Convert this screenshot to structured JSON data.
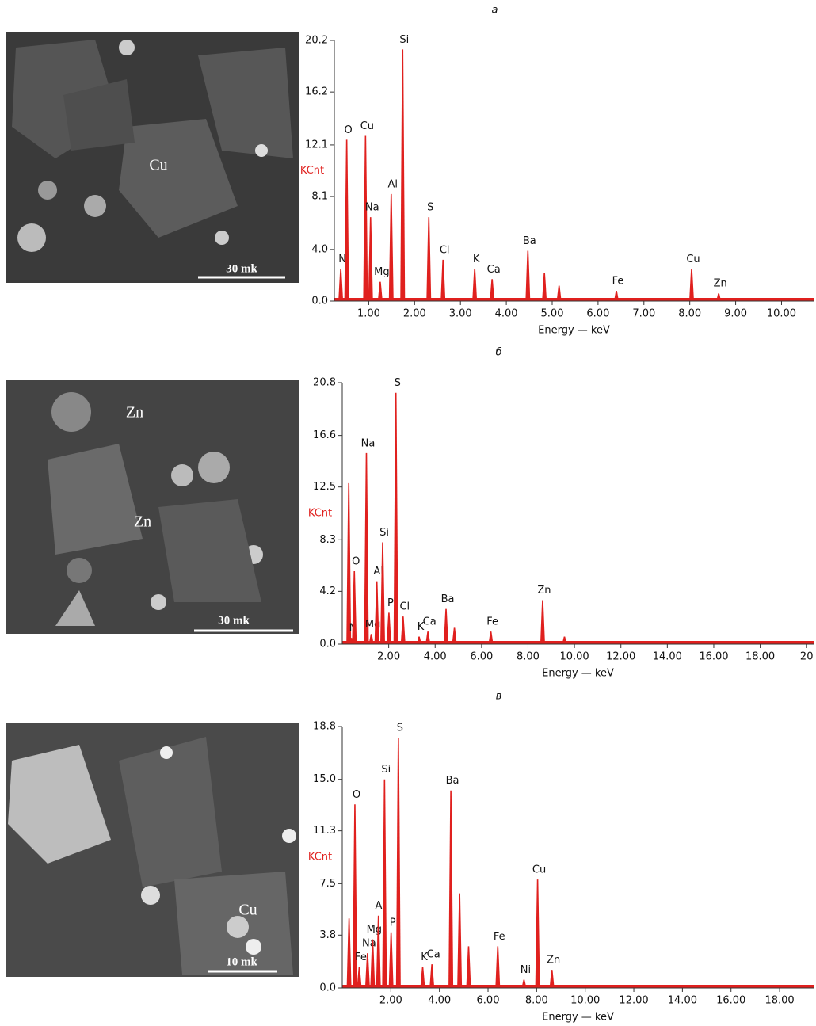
{
  "chart_data": [
    {
      "type": "spectrum",
      "title": "а",
      "ylabel": "KCnt",
      "xlabel": "Energy — keV",
      "color": "#e0201e",
      "xlim": [
        0.25,
        10.7
      ],
      "ylim": [
        0,
        20.2
      ],
      "xticks": [
        {
          "value": 1,
          "label": "1.00"
        },
        {
          "value": 2,
          "label": "2.00"
        },
        {
          "value": 3,
          "label": "3.00"
        },
        {
          "value": 4,
          "label": "4.00"
        },
        {
          "value": 5,
          "label": "5.00"
        },
        {
          "value": 6,
          "label": "6.00"
        },
        {
          "value": 7,
          "label": "7.00"
        },
        {
          "value": 8,
          "label": "8.00"
        },
        {
          "value": 9,
          "label": "9.00"
        },
        {
          "value": 10,
          "label": "10.00"
        }
      ],
      "yticks": [
        {
          "value": 0,
          "label": "0.0"
        },
        {
          "value": 4,
          "label": "4.0"
        },
        8.1,
        12.1,
        16.2,
        20.2
      ],
      "x": [
        0.39,
        0.52,
        0.93,
        1.04,
        1.25,
        1.49,
        1.74,
        2.31,
        2.62,
        3.31,
        3.69,
        4.47,
        4.83,
        5.15,
        6.4,
        8.04,
        8.63
      ],
      "values": [
        2.5,
        12.5,
        12.8,
        6.5,
        1.5,
        8.3,
        19.5,
        6.5,
        3.2,
        2.5,
        1.7,
        3.9,
        2.2,
        1.2,
        0.8,
        2.5,
        0.6
      ],
      "labels": [
        "N",
        "O",
        "Cu",
        "Na",
        "Mg",
        "Al",
        "Si",
        "S",
        "Cl",
        "K",
        "Ca",
        "Ba",
        null,
        null,
        "Fe",
        "Cu",
        "Zn"
      ]
    },
    {
      "type": "spectrum",
      "title": "б",
      "ylabel": "KCnt",
      "xlabel": "Energy — keV",
      "color": "#e0201e",
      "xlim": [
        0,
        20.3
      ],
      "ylim": [
        0,
        20.8
      ],
      "xticks": [
        {
          "value": 2,
          "label": "2.00"
        },
        {
          "value": 4,
          "label": "4.00"
        },
        {
          "value": 6,
          "label": "6.00"
        },
        {
          "value": 8,
          "label": "8.00"
        },
        {
          "value": 10,
          "label": "10.00"
        },
        {
          "value": 12,
          "label": "12.00"
        },
        {
          "value": 14,
          "label": "14.00"
        },
        {
          "value": 16,
          "label": "16.00"
        },
        {
          "value": 18,
          "label": "18.00"
        },
        20
      ],
      "yticks": [
        {
          "value": 0,
          "label": "0.0"
        },
        4.2,
        8.3,
        12.5,
        16.6,
        20.8
      ],
      "x": [
        0.28,
        0.39,
        0.52,
        1.04,
        1.25,
        1.49,
        1.74,
        2.01,
        2.31,
        2.62,
        3.31,
        3.69,
        4.47,
        4.83,
        6.4,
        8.63,
        9.57
      ],
      "values": [
        12.8,
        0.5,
        5.8,
        15.2,
        0.8,
        5.0,
        8.1,
        2.5,
        20.0,
        2.2,
        0.6,
        1.0,
        2.8,
        1.3,
        1.0,
        3.5,
        0.6
      ],
      "labels": [
        null,
        "N",
        "O",
        "Na",
        "Mg",
        "Al",
        "Si",
        "P",
        "S",
        "Cl",
        "K",
        "Ca",
        "Ba",
        null,
        "Fe",
        "Zn",
        null
      ]
    },
    {
      "type": "spectrum",
      "title": "в",
      "ylabel": "KCnt",
      "xlabel": "Energy — keV",
      "color": "#e0201e",
      "xlim": [
        0,
        19.4
      ],
      "ylim": [
        0,
        18.8
      ],
      "xticks": [
        {
          "value": 2,
          "label": "2.00"
        },
        {
          "value": 4,
          "label": "4.00"
        },
        {
          "value": 6,
          "label": "6.00"
        },
        {
          "value": 8,
          "label": "8.00"
        },
        {
          "value": 10,
          "label": "10.00"
        },
        {
          "value": 12,
          "label": "12.00"
        },
        {
          "value": 14,
          "label": "14.00"
        },
        {
          "value": 16,
          "label": "16.00"
        },
        {
          "value": 18,
          "label": "18.00"
        }
      ],
      "yticks": [
        {
          "value": 0,
          "label": "0.0"
        },
        3.8,
        7.5,
        11.3,
        {
          "value": 15,
          "label": "15.0"
        },
        18.8
      ],
      "x": [
        0.28,
        0.52,
        0.7,
        1.04,
        1.25,
        1.49,
        1.74,
        2.01,
        2.31,
        3.31,
        3.69,
        4.47,
        4.83,
        5.2,
        6.4,
        7.48,
        8.04,
        8.63
      ],
      "values": [
        5.0,
        13.2,
        1.5,
        2.5,
        3.5,
        5.2,
        15.0,
        4.0,
        18.0,
        1.5,
        1.7,
        14.2,
        6.8,
        3.0,
        3.0,
        0.6,
        7.8,
        1.3
      ],
      "labels": [
        null,
        "O",
        "Fe",
        "Na",
        "Mg",
        "Al",
        "Si",
        "P",
        "S",
        "K",
        "Ca",
        "Ba",
        null,
        null,
        "Fe",
        "Ni",
        "Cu",
        "Zn"
      ]
    }
  ],
  "images": [
    {
      "labels": [
        "Cu"
      ],
      "scale": "30 mk"
    },
    {
      "labels": [
        "Zn",
        "Zn"
      ],
      "scale": "30 mk"
    },
    {
      "labels": [
        "Cu"
      ],
      "scale": "10 mk"
    }
  ]
}
